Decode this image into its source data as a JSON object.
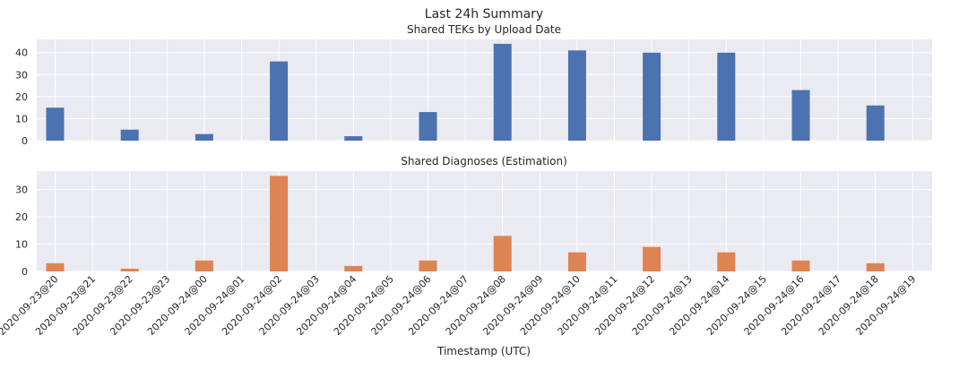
{
  "figure": {
    "title": "Last 24h Summary",
    "xlabel": "Timestamp (UTC)"
  },
  "chart_data": [
    {
      "type": "bar",
      "title": "Shared TEKs by Upload Date",
      "categories": [
        "2020-09-23@20",
        "2020-09-23@21",
        "2020-09-23@22",
        "2020-09-23@23",
        "2020-09-24@00",
        "2020-09-24@01",
        "2020-09-24@02",
        "2020-09-24@03",
        "2020-09-24@04",
        "2020-09-24@05",
        "2020-09-24@06",
        "2020-09-24@07",
        "2020-09-24@08",
        "2020-09-24@09",
        "2020-09-24@10",
        "2020-09-24@11",
        "2020-09-24@12",
        "2020-09-24@13",
        "2020-09-24@14",
        "2020-09-24@15",
        "2020-09-24@16",
        "2020-09-24@17",
        "2020-09-24@18",
        "2020-09-24@19"
      ],
      "values": [
        15,
        null,
        5,
        null,
        3,
        null,
        36,
        null,
        2,
        null,
        13,
        null,
        44,
        null,
        41,
        null,
        40,
        null,
        40,
        null,
        23,
        null,
        16,
        null
      ],
      "ylim": [
        0,
        46
      ],
      "yticks": [
        0,
        10,
        20,
        30,
        40
      ],
      "color": "#4c72b0",
      "grid": true
    },
    {
      "type": "bar",
      "title": "Shared Diagnoses (Estimation)",
      "categories": [
        "2020-09-23@20",
        "2020-09-23@21",
        "2020-09-23@22",
        "2020-09-23@23",
        "2020-09-24@00",
        "2020-09-24@01",
        "2020-09-24@02",
        "2020-09-24@03",
        "2020-09-24@04",
        "2020-09-24@05",
        "2020-09-24@06",
        "2020-09-24@07",
        "2020-09-24@08",
        "2020-09-24@09",
        "2020-09-24@10",
        "2020-09-24@11",
        "2020-09-24@12",
        "2020-09-24@13",
        "2020-09-24@14",
        "2020-09-24@15",
        "2020-09-24@16",
        "2020-09-24@17",
        "2020-09-24@18",
        "2020-09-24@19"
      ],
      "values": [
        3,
        null,
        1,
        null,
        4,
        null,
        35,
        null,
        2,
        null,
        4,
        null,
        13,
        null,
        7,
        null,
        9,
        null,
        7,
        null,
        4,
        null,
        3,
        null
      ],
      "ylim": [
        0,
        36.75
      ],
      "yticks": [
        0,
        10,
        20,
        30
      ],
      "color": "#dd8452",
      "grid": true
    }
  ]
}
